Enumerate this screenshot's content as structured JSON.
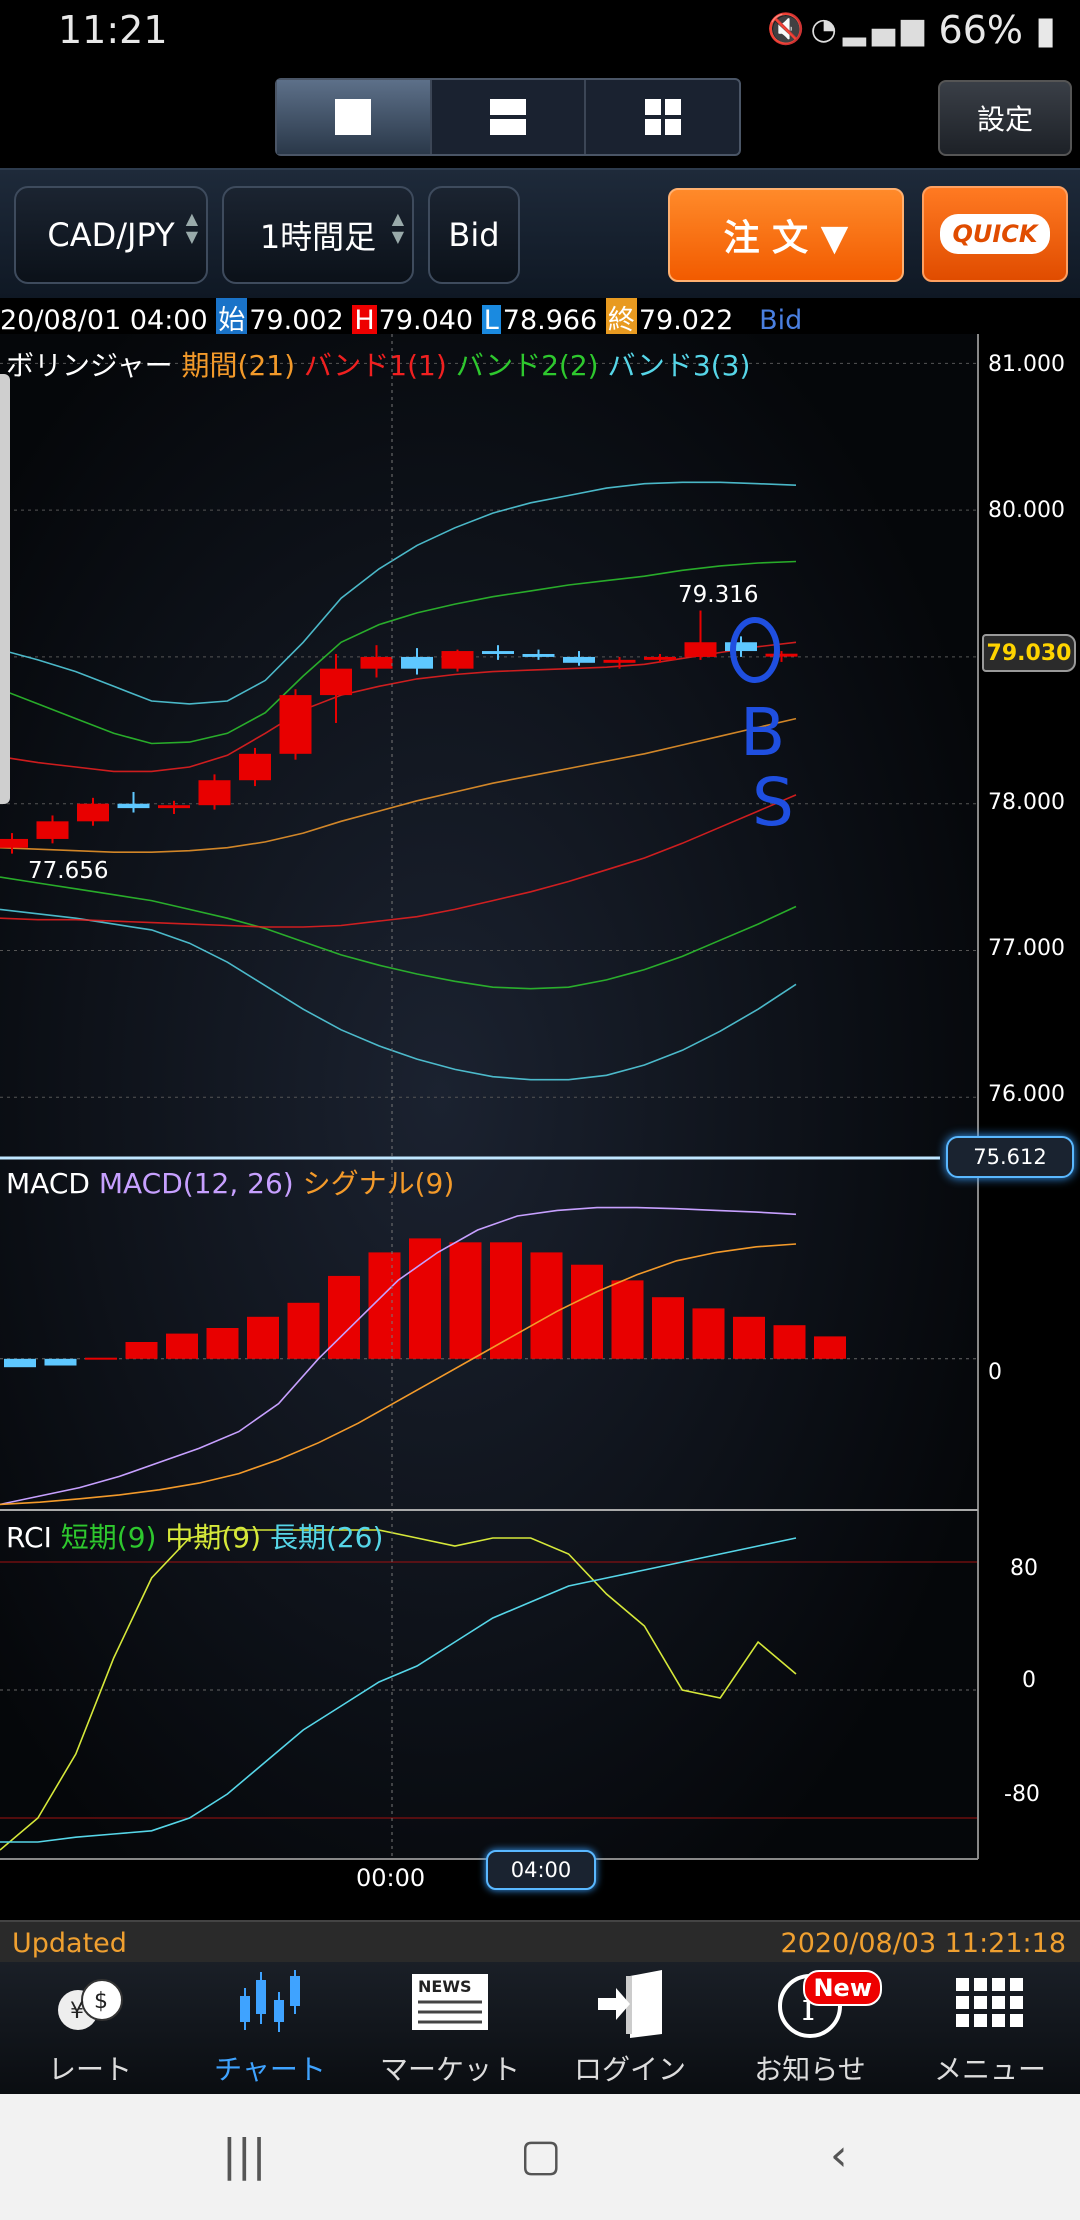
{
  "status_bar": {
    "time": "11:21",
    "battery": "66%"
  },
  "header": {
    "settings_label": "設定"
  },
  "toolbar": {
    "pair": "CAD/JPY",
    "timeframe": "1時間足",
    "price_type": "Bid",
    "order_label": "注 文 ▼",
    "quick_label": "QUICK"
  },
  "ohlc": {
    "datetime": "20/08/01 04:00",
    "open_tag": "始",
    "open": "79.002",
    "high_tag": "H",
    "high": "79.040",
    "low_tag": "L",
    "low": "78.966",
    "close_tag": "終",
    "close": "79.022",
    "price_type": "Bid"
  },
  "bollinger_legend": {
    "name": "ボリンジャー",
    "period": "期間(21)",
    "band1": "バンド1(1)",
    "band2": "バンド2(2)",
    "band3": "バンド3(3)"
  },
  "price_axis": {
    "ticks": [
      "81.000",
      "80.000",
      "79.000",
      "78.000",
      "77.000",
      "76.000"
    ],
    "current_price": "79.030",
    "crosshair_price": "75.612"
  },
  "annotations": {
    "high_label": "79.316",
    "low_label": "77.656",
    "handwriting": [
      "B",
      "S"
    ]
  },
  "macd_legend": {
    "name": "MACD",
    "macd": "MACD(12, 26)",
    "signal": "シグナル(9)",
    "zero_label": "0"
  },
  "rci_legend": {
    "name": "RCI",
    "short": "短期(9)",
    "mid": "中期(9)",
    "long": "長期(26)",
    "ticks": [
      "80",
      "0",
      "-80"
    ]
  },
  "time_axis": {
    "label1": "00:00",
    "cursor_label": "04:00"
  },
  "update_bar": {
    "status": "Updated",
    "timestamp": "2020/08/03 11:21:18"
  },
  "nav": [
    {
      "label": "レート",
      "icon": "rate-icon"
    },
    {
      "label": "チャート",
      "icon": "chart-icon"
    },
    {
      "label": "マーケット",
      "icon": "news-icon"
    },
    {
      "label": "ログイン",
      "icon": "login-icon"
    },
    {
      "label": "お知らせ",
      "icon": "info-icon"
    },
    {
      "label": "メニュー",
      "icon": "menu-grid-icon"
    }
  ],
  "badge_new": "New",
  "colors": {
    "bull": "#e80000",
    "bear": "#5ec8ff",
    "accent": "#f25b00",
    "active_nav": "#3fa3ff"
  },
  "chart_data": {
    "type": "line",
    "panels": [
      "price",
      "macd",
      "rci"
    ],
    "price": {
      "ylim": [
        75.6,
        81.2
      ],
      "candles_ohlc": [
        [
          77.7,
          77.8,
          77.66,
          77.76
        ],
        [
          77.76,
          77.92,
          77.73,
          77.88
        ],
        [
          77.88,
          78.04,
          77.85,
          78.0
        ],
        [
          78.0,
          78.08,
          77.94,
          77.97
        ],
        [
          77.97,
          78.02,
          77.93,
          77.99
        ],
        [
          77.99,
          78.2,
          77.96,
          78.16
        ],
        [
          78.16,
          78.38,
          78.12,
          78.34
        ],
        [
          78.34,
          78.78,
          78.3,
          78.74
        ],
        [
          78.74,
          79.02,
          78.55,
          78.92
        ],
        [
          78.92,
          79.08,
          78.86,
          79.0
        ],
        [
          79.0,
          79.06,
          78.88,
          78.92
        ],
        [
          78.92,
          79.05,
          78.9,
          79.04
        ],
        [
          79.04,
          79.08,
          78.98,
          79.02
        ],
        [
          79.02,
          79.05,
          78.98,
          79.0
        ],
        [
          79.0,
          79.04,
          78.94,
          78.96
        ],
        [
          78.96,
          79.0,
          78.92,
          78.98
        ],
        [
          78.98,
          79.02,
          78.96,
          79.0
        ],
        [
          79.0,
          79.316,
          78.98,
          79.1
        ],
        [
          79.1,
          79.14,
          79.0,
          79.04
        ],
        [
          79.002,
          79.04,
          78.966,
          79.022
        ]
      ],
      "mid": [
        77.7,
        77.69,
        77.68,
        77.67,
        77.67,
        77.68,
        77.7,
        77.74,
        77.8,
        77.88,
        77.95,
        78.02,
        78.08,
        78.14,
        78.19,
        78.24,
        78.29,
        78.34,
        78.4,
        78.46,
        78.52,
        78.58
      ],
      "upper1": [
        78.32,
        78.28,
        78.25,
        78.22,
        78.22,
        78.25,
        78.33,
        78.48,
        78.64,
        78.74,
        78.8,
        78.85,
        78.88,
        78.9,
        78.91,
        78.92,
        78.93,
        78.95,
        78.99,
        79.03,
        79.07,
        79.1
      ],
      "lower1": [
        77.22,
        77.21,
        77.21,
        77.2,
        77.19,
        77.18,
        77.17,
        77.16,
        77.16,
        77.17,
        77.2,
        77.23,
        77.28,
        77.34,
        77.4,
        77.47,
        77.55,
        77.63,
        77.73,
        77.84,
        77.95,
        78.06
      ],
      "upper2": [
        78.78,
        78.68,
        78.58,
        78.48,
        78.41,
        78.42,
        78.48,
        78.62,
        78.87,
        79.1,
        79.22,
        79.3,
        79.36,
        79.41,
        79.45,
        79.49,
        79.52,
        79.55,
        79.59,
        79.62,
        79.64,
        79.65
      ],
      "lower2": [
        77.5,
        77.46,
        77.42,
        77.38,
        77.34,
        77.28,
        77.22,
        77.15,
        77.06,
        76.97,
        76.9,
        76.84,
        76.79,
        76.75,
        76.74,
        76.75,
        76.8,
        76.87,
        76.96,
        77.07,
        77.18,
        77.3
      ],
      "upper3": [
        79.05,
        78.98,
        78.9,
        78.8,
        78.7,
        78.68,
        78.7,
        78.84,
        79.1,
        79.4,
        79.6,
        79.76,
        79.88,
        79.98,
        80.05,
        80.1,
        80.15,
        80.18,
        80.19,
        80.19,
        80.18,
        80.17
      ],
      "lower3": [
        77.28,
        77.25,
        77.22,
        77.18,
        77.14,
        77.05,
        76.92,
        76.76,
        76.6,
        76.46,
        76.35,
        76.26,
        76.19,
        76.14,
        76.12,
        76.12,
        76.15,
        76.22,
        76.32,
        76.45,
        76.6,
        76.77
      ]
    },
    "macd": {
      "hist": [
        -0.015,
        -0.012,
        0.002,
        0.03,
        0.045,
        0.055,
        0.075,
        0.1,
        0.148,
        0.19,
        0.215,
        0.208,
        0.208,
        0.19,
        0.168,
        0.14,
        0.11,
        0.09,
        0.075,
        0.06,
        0.04
      ],
      "macd": [
        -0.26,
        -0.245,
        -0.23,
        -0.21,
        -0.185,
        -0.16,
        -0.13,
        -0.08,
        0.0,
        0.07,
        0.14,
        0.19,
        0.23,
        0.255,
        0.265,
        0.27,
        0.27,
        0.268,
        0.265,
        0.262,
        0.258
      ],
      "signal": [
        -0.26,
        -0.256,
        -0.25,
        -0.243,
        -0.234,
        -0.222,
        -0.205,
        -0.18,
        -0.15,
        -0.115,
        -0.075,
        -0.035,
        0.005,
        0.045,
        0.085,
        0.12,
        0.15,
        0.175,
        0.19,
        0.2,
        0.205
      ],
      "ylim": [
        -0.27,
        0.33
      ]
    },
    "rci": {
      "short": [
        -100,
        -80,
        -40,
        20,
        70,
        95,
        100,
        100,
        100,
        100,
        100,
        95,
        90,
        95,
        95,
        85,
        60,
        40,
        0,
        -5,
        30,
        10
      ],
      "long": [
        -95,
        -95,
        -92,
        -90,
        -88,
        -80,
        -65,
        -45,
        -25,
        -10,
        5,
        15,
        30,
        45,
        55,
        65,
        70,
        75,
        80,
        85,
        90,
        95
      ],
      "ylim": [
        -100,
        100
      ]
    },
    "xlabel": "",
    "ylabel": ""
  }
}
